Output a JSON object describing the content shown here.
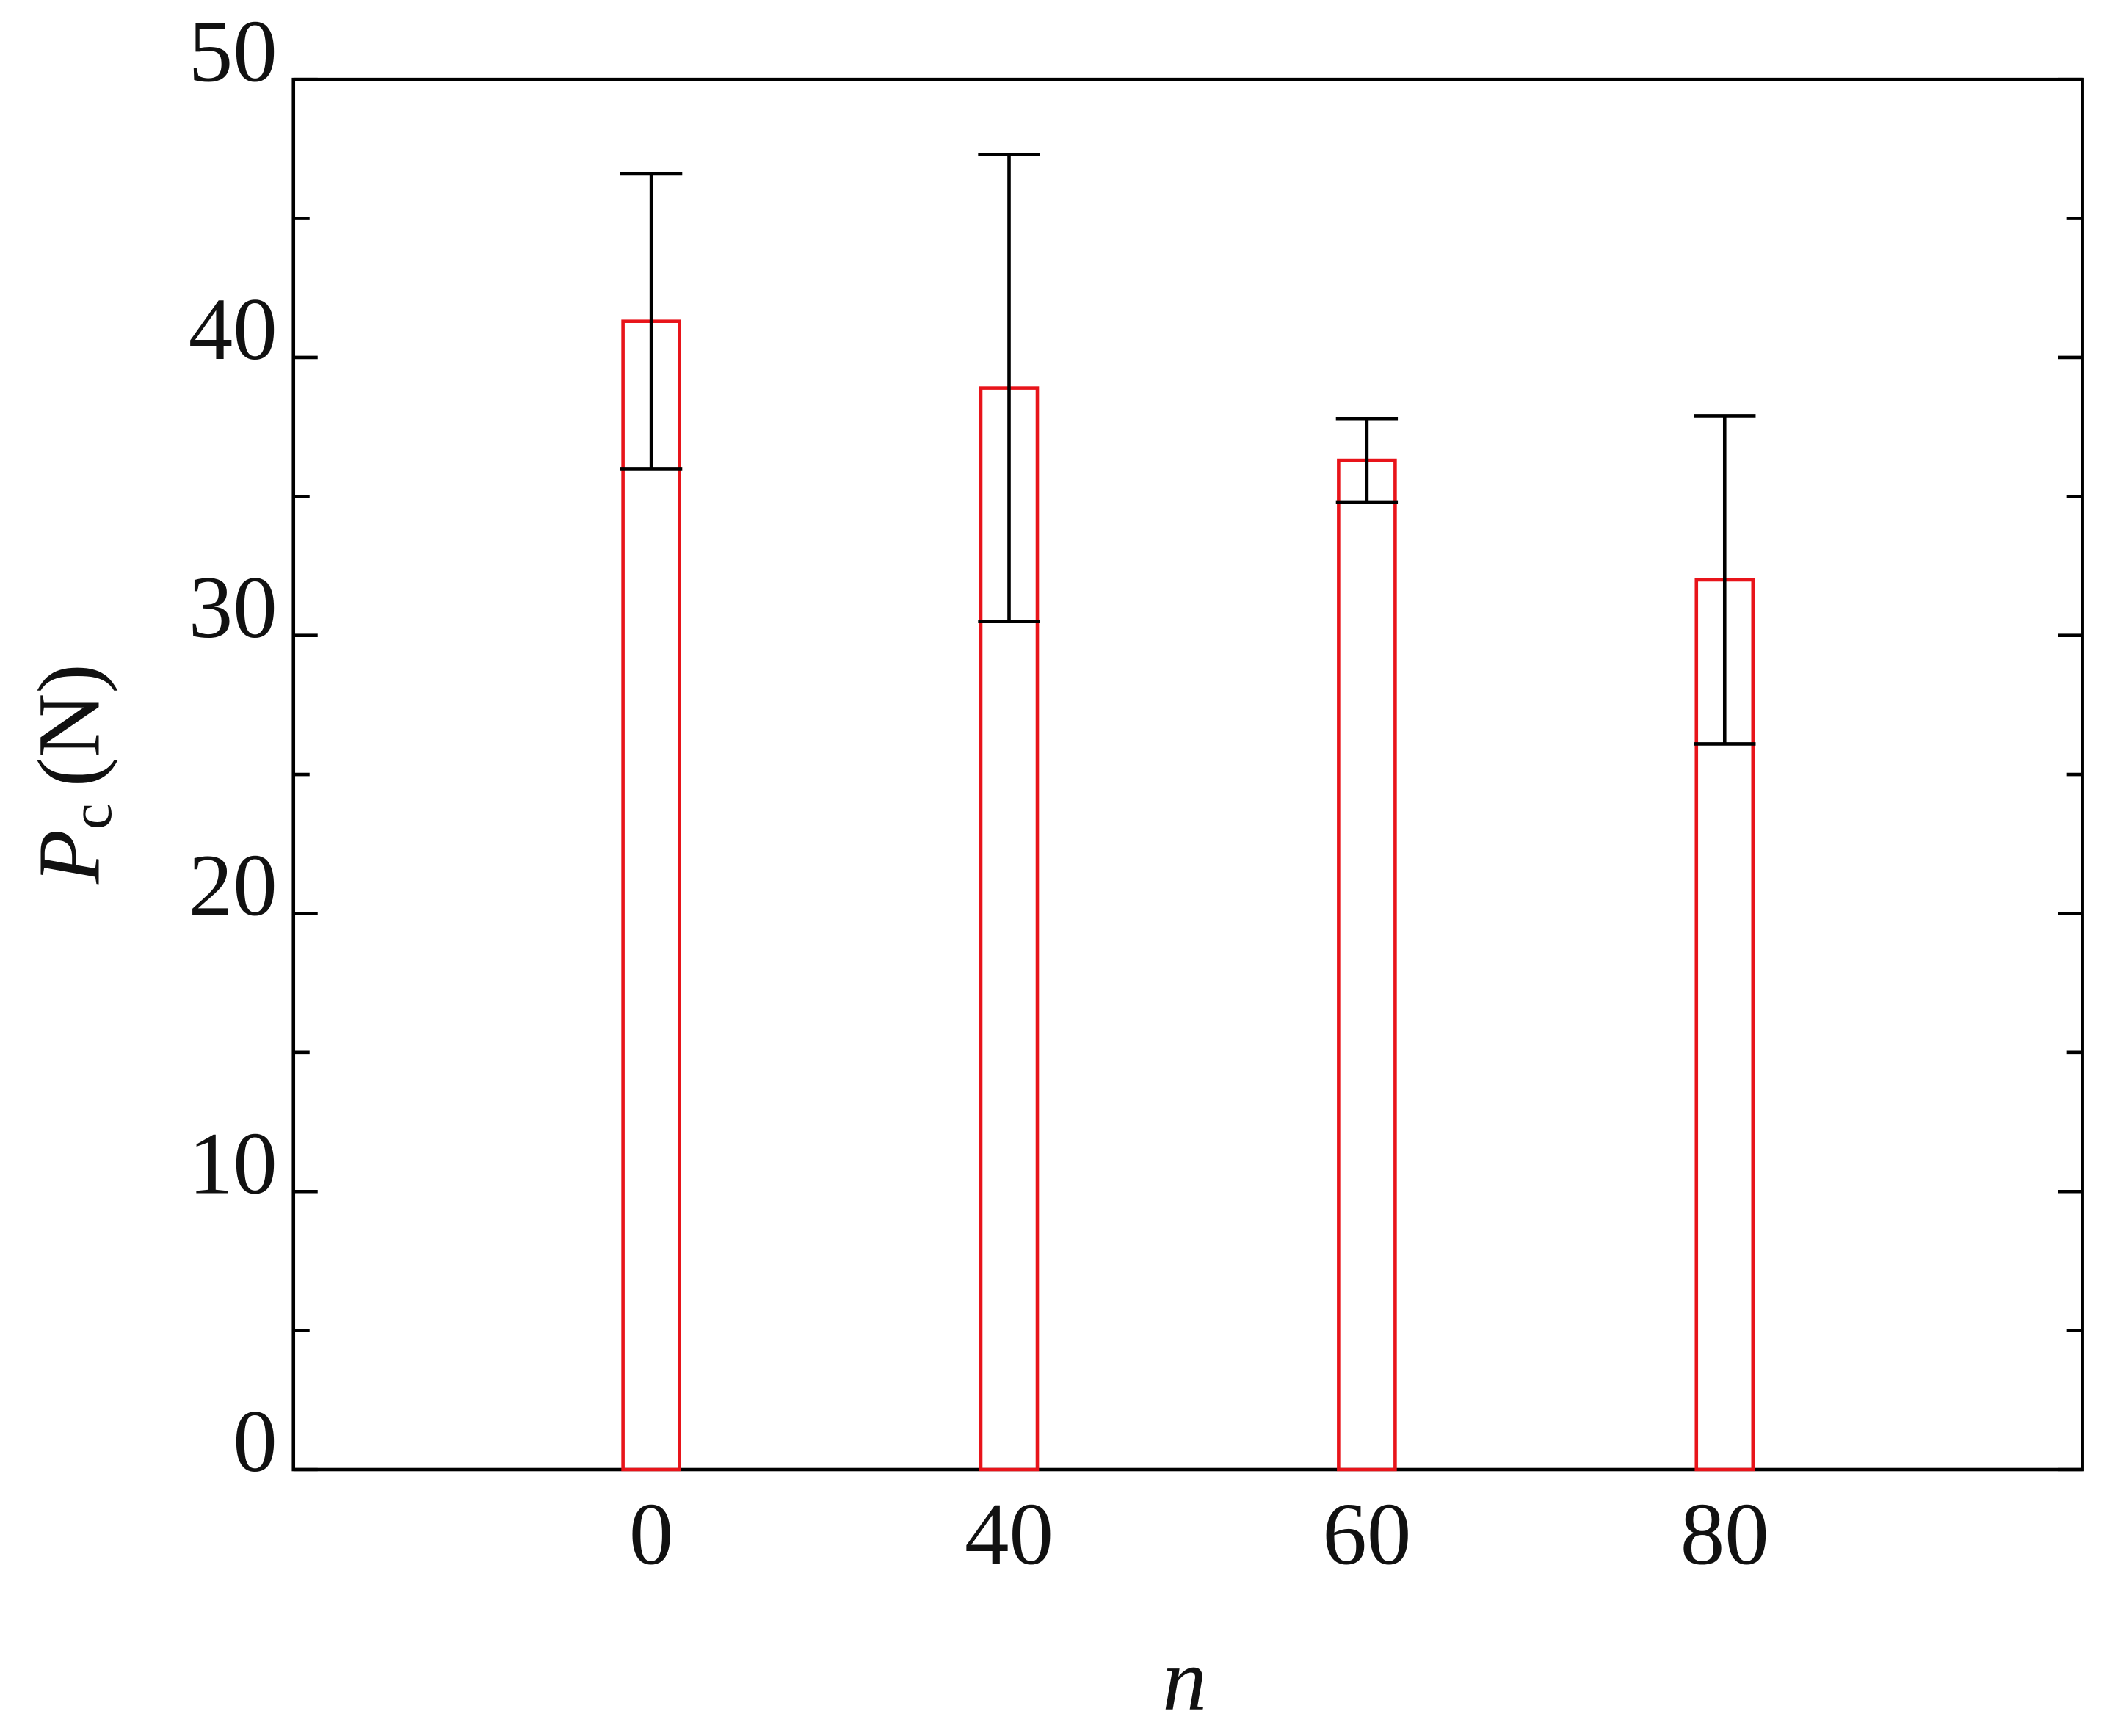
{
  "chart_data": {
    "type": "bar",
    "x_label": "n",
    "y_label": {
      "symbol": "P",
      "subscript": "c",
      "unit": "(N)"
    },
    "categories": [
      "0",
      "40",
      "60",
      "80"
    ],
    "values": [
      41.3,
      38.9,
      36.3,
      32.0
    ],
    "errors": [
      5.3,
      8.4,
      1.5,
      5.9
    ],
    "color": "#e8141a",
    "error_color": "#000000",
    "ylim": [
      0,
      50
    ],
    "yticks": [
      0,
      10,
      20,
      30,
      40,
      50
    ],
    "y_minor_ticks": [
      5,
      15,
      25,
      35,
      45
    ]
  }
}
